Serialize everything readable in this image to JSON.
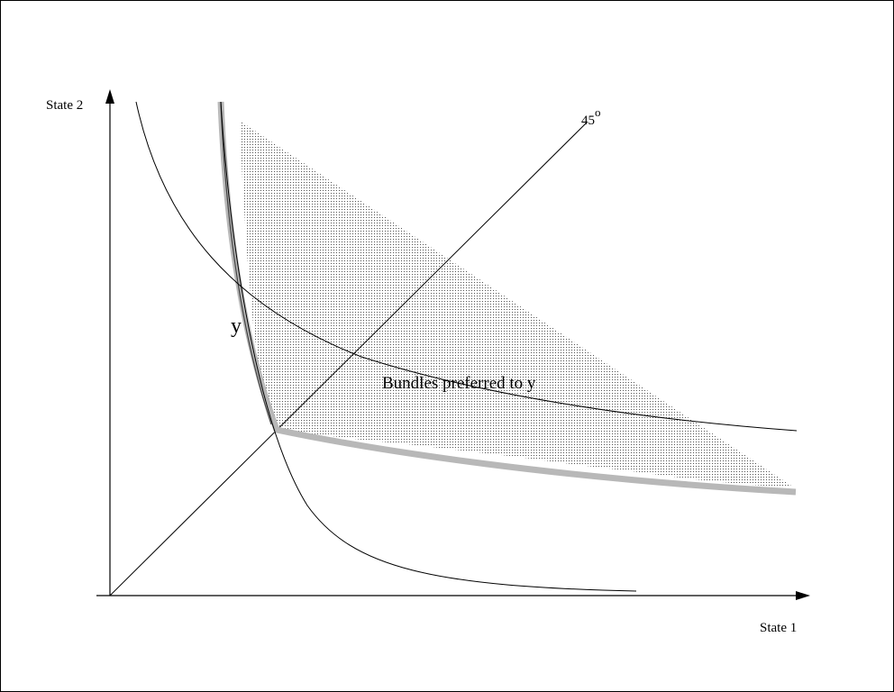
{
  "diagram": {
    "y_axis_label": "State 2",
    "x_axis_label": "State 1",
    "diagonal_label": "45",
    "diagonal_degree_sign": "o",
    "point_label": "y",
    "region_label": "Bundles preferred to y"
  }
}
